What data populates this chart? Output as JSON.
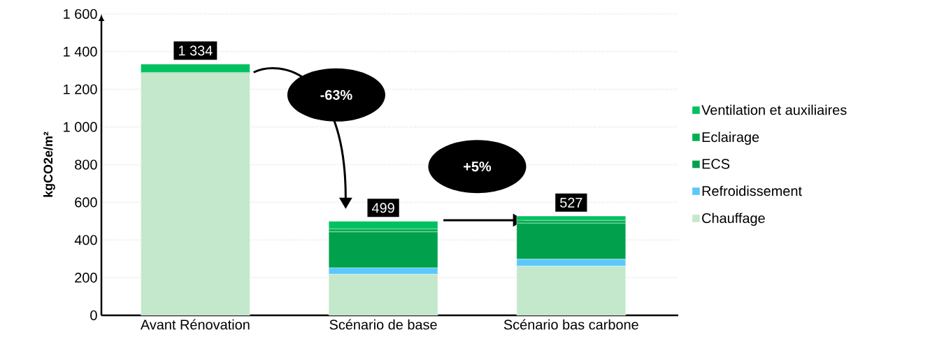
{
  "chart_data": {
    "type": "bar",
    "stacked": true,
    "ylabel": "kgCO2e/m²",
    "categories": [
      "Avant Rénovation",
      "Scénario de base",
      "Scénario bas carbone"
    ],
    "series": [
      {
        "name": "Chauffage",
        "color": "#c3e8cc",
        "values": [
          1285,
          218,
          261
        ]
      },
      {
        "name": "Refroidissement",
        "color": "#5bc8fb",
        "values": [
          0,
          34,
          37
        ]
      },
      {
        "name": "ECS",
        "color": "#00a04c",
        "values": [
          5,
          191,
          191
        ]
      },
      {
        "name": "Eclairage",
        "color": "#00b050",
        "values": [
          0,
          16,
          15
        ]
      },
      {
        "name": "Ventilation et auxiliaires",
        "color": "#00c060",
        "values": [
          44,
          40,
          23
        ]
      }
    ],
    "totals": [
      "1 334",
      "499",
      "527"
    ],
    "annotations": [
      "-63%",
      "+5%"
    ],
    "ylim": [
      0,
      1600
    ],
    "yticks": [
      0,
      200,
      400,
      600,
      800,
      {
        "value": 1000,
        "label": "1 000"
      },
      {
        "value": 1200,
        "label": "1 200"
      },
      {
        "value": 1400,
        "label": "1 400"
      },
      {
        "value": 1600,
        "label": "1 600"
      }
    ],
    "grid": "y",
    "legend": "right"
  }
}
